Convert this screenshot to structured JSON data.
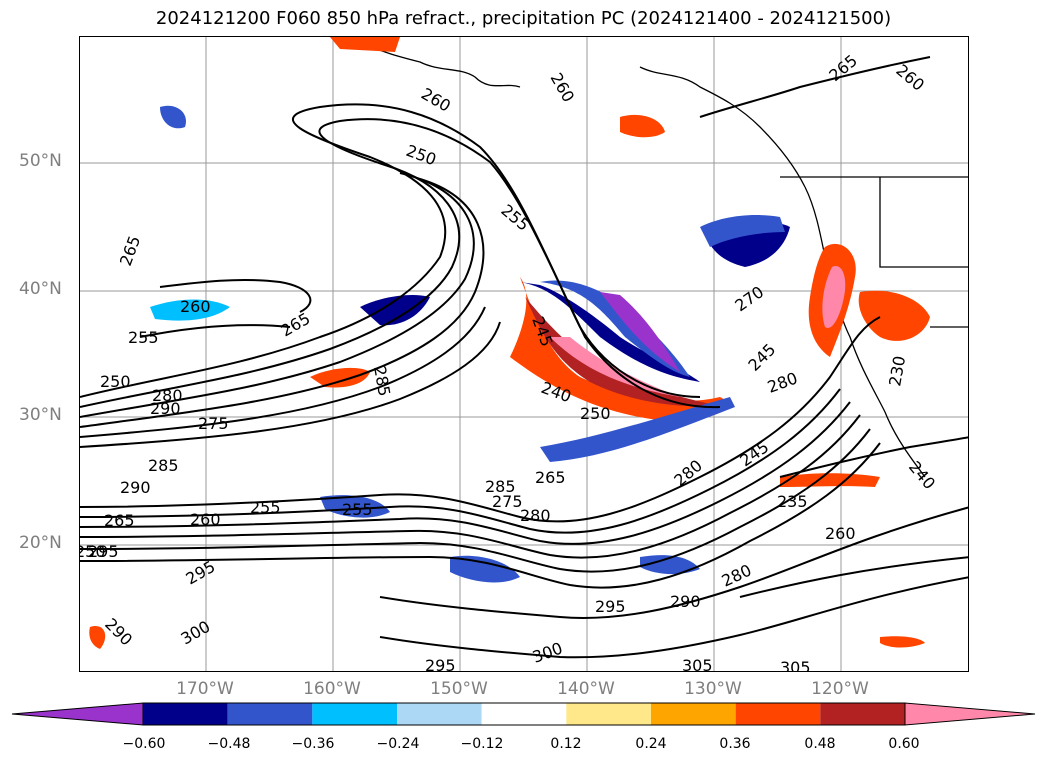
{
  "title": "2024121200 F060 850 hPa refract., precipitation PC (2024121400 - 2024121500)",
  "latitude_labels": [
    "50°N",
    "40°N",
    "30°N",
    "20°N"
  ],
  "longitude_labels": [
    "170°W",
    "160°W",
    "150°W",
    "140°W",
    "130°W",
    "120°W"
  ],
  "colorbar": {
    "ticks": [
      "−0.60",
      "−0.48",
      "−0.36",
      "−0.24",
      "−0.12",
      "0.12",
      "0.24",
      "0.36",
      "0.48",
      "0.60"
    ],
    "colors": [
      "#9933cc",
      "#00008b",
      "#3355cc",
      "#00bfff",
      "#add8f5",
      "#ffffff",
      "#ffe88a",
      "#ffa500",
      "#ff4500",
      "#b22222",
      "#ff88aa"
    ]
  },
  "contour_labels": [
    "265",
    "260",
    "255",
    "250",
    "280",
    "290",
    "275",
    "285",
    "290",
    "265",
    "260",
    "255",
    "250",
    "295",
    "295",
    "290",
    "300",
    "295",
    "285",
    "260",
    "250",
    "255",
    "265",
    "285",
    "245",
    "240",
    "250",
    "275",
    "280",
    "280",
    "265",
    "270",
    "245",
    "245",
    "235",
    "260",
    "280",
    "290",
    "295",
    "300",
    "305",
    "305",
    "260",
    "265",
    "260",
    "280",
    "240",
    "230",
    "255"
  ]
}
